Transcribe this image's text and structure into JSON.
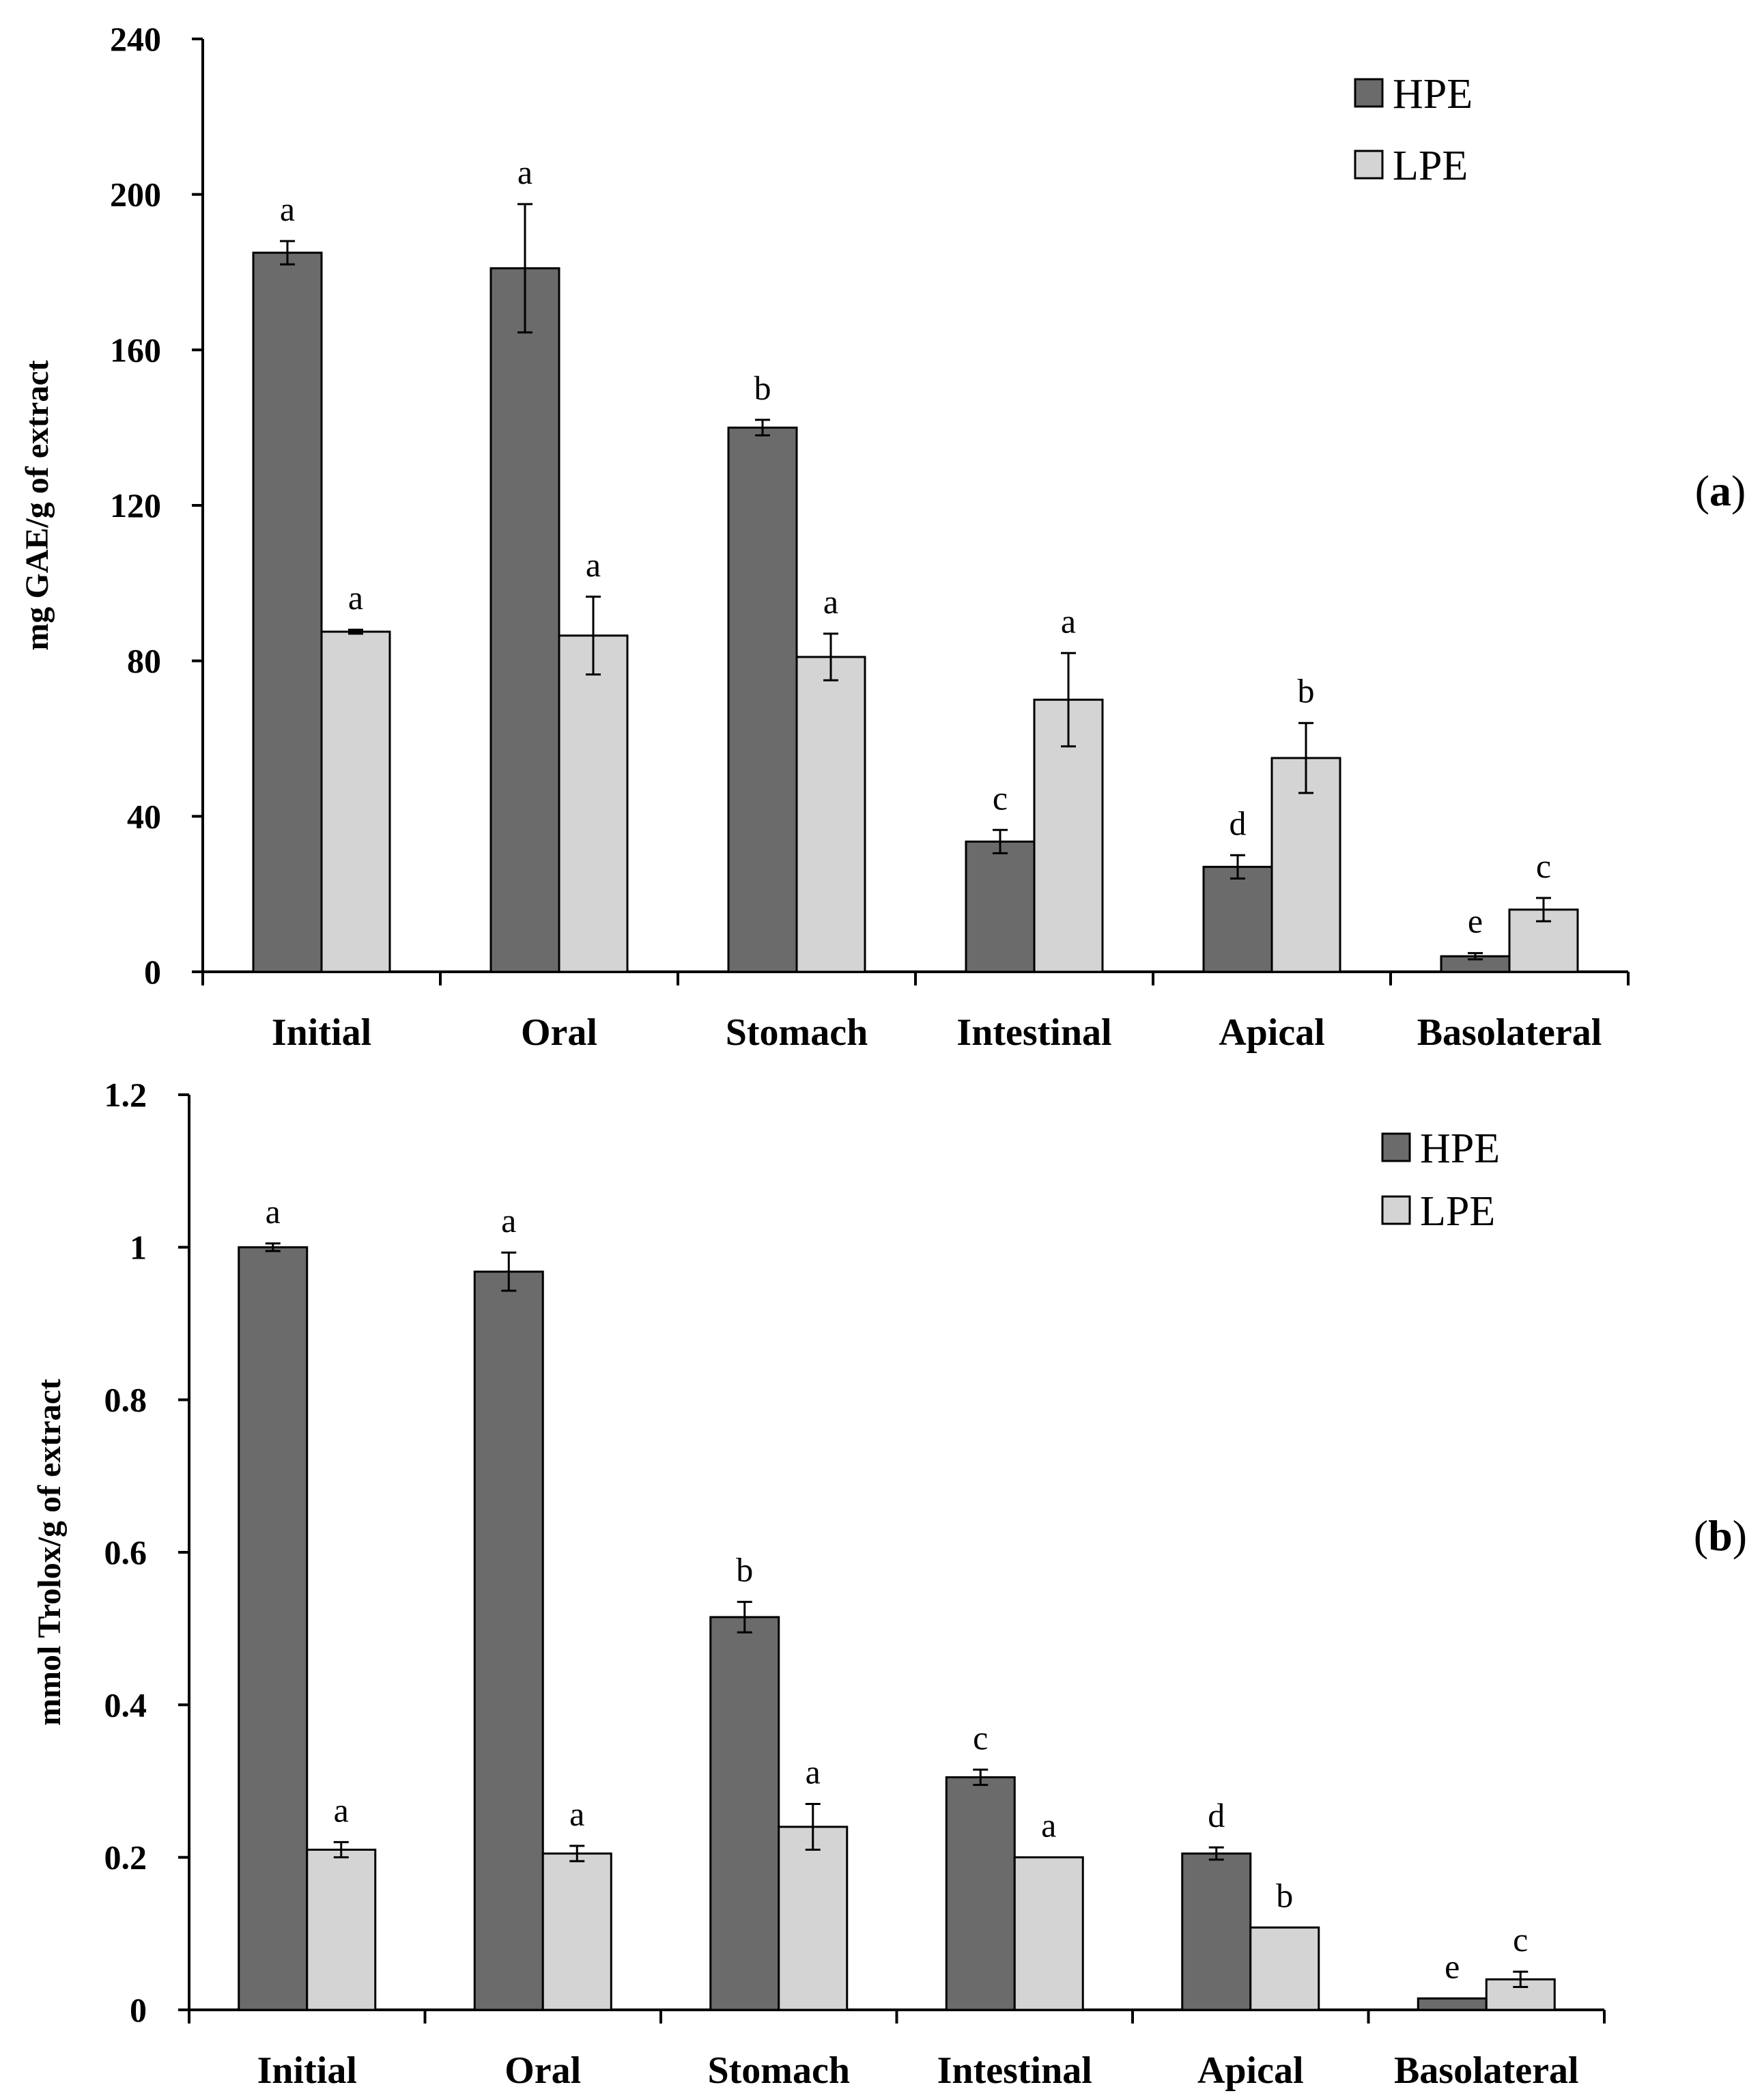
{
  "colors": {
    "HPE": "#6b6b6b",
    "LPE": "#d4d4d4",
    "outline": "#000000"
  },
  "chart_data": [
    {
      "type": "bar",
      "panel_label": "(a)",
      "panel_letter": "a",
      "ylabel": "mg GAE/g of extract",
      "xlabel": "",
      "ylim": [
        0,
        240
      ],
      "yticks": [
        0,
        40,
        80,
        120,
        160,
        200,
        240
      ],
      "ytick_labels": [
        "0",
        "40",
        "80",
        "120",
        "160",
        "200",
        "240"
      ],
      "legend_position": "top-right",
      "categories": [
        "Initial",
        "Oral",
        "Stomach",
        "Intestinal",
        "Apical",
        "Basolateral"
      ],
      "series": [
        {
          "name": "HPE",
          "color": "#6b6b6b",
          "values": [
            185,
            181,
            140,
            33.5,
            27,
            4
          ],
          "errors": [
            3,
            16.5,
            2,
            3,
            3,
            0.8
          ],
          "letters": [
            "a",
            "a",
            "b",
            "c",
            "d",
            "e"
          ]
        },
        {
          "name": "LPE",
          "color": "#d4d4d4",
          "values": [
            87.5,
            86.5,
            81,
            70,
            55,
            16
          ],
          "errors": [
            0.5,
            10,
            6,
            12,
            9,
            3
          ],
          "letters": [
            "a",
            "a",
            "a",
            "a",
            "b",
            "c"
          ]
        }
      ],
      "grid": false
    },
    {
      "type": "bar",
      "panel_label": "(b)",
      "panel_letter": "b",
      "ylabel": "mmol Trolox/g of extract",
      "xlabel": "",
      "ylim": [
        0,
        1.2
      ],
      "yticks": [
        0,
        0.2,
        0.4,
        0.6,
        0.8,
        1.0,
        1.2
      ],
      "ytick_labels": [
        "0",
        "0.2",
        "0.4",
        "0.6",
        "0.8",
        "1",
        "1.2"
      ],
      "legend_position": "top-right",
      "categories": [
        "Initial",
        "Oral",
        "Stomach",
        "Intestinal",
        "Apical",
        "Basolateral"
      ],
      "series": [
        {
          "name": "HPE",
          "color": "#6b6b6b",
          "values": [
            1.0,
            0.968,
            0.515,
            0.305,
            0.205,
            0.015
          ],
          "errors": [
            0.005,
            0.025,
            0.02,
            0.01,
            0.008,
            0
          ],
          "letters": [
            "a",
            "a",
            "b",
            "c",
            "d",
            "e"
          ]
        },
        {
          "name": "LPE",
          "color": "#d4d4d4",
          "values": [
            0.21,
            0.205,
            0.24,
            0.2,
            0.108,
            0.04
          ],
          "errors": [
            0.01,
            0.01,
            0.03,
            0,
            0,
            0.01
          ],
          "letters": [
            "a",
            "a",
            "a",
            "a",
            "b",
            "c"
          ]
        }
      ],
      "grid": false
    }
  ]
}
